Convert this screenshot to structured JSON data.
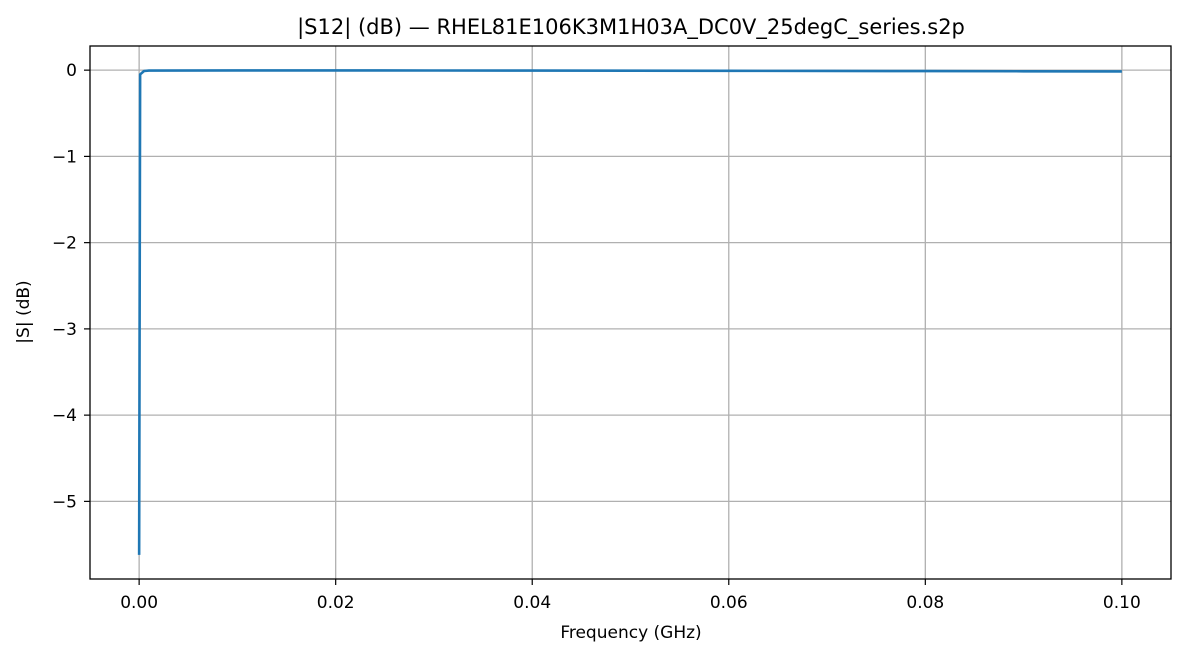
{
  "chart_data": {
    "type": "line",
    "title": "|S12| (dB) — RHEL81E106K3M1H03A_DC0V_25degC_series.s2p",
    "xlabel": "Frequency (GHz)",
    "ylabel": "|S| (dB)",
    "xlim": [
      -0.005,
      0.105
    ],
    "ylim": [
      -5.9,
      0.28
    ],
    "grid": true,
    "x_ticks": [
      0.0,
      0.02,
      0.04,
      0.06,
      0.08,
      0.1
    ],
    "x_tick_labels": [
      "0.00",
      "0.02",
      "0.04",
      "0.06",
      "0.08",
      "0.10"
    ],
    "y_ticks": [
      0,
      -1,
      -2,
      -3,
      -4,
      -5
    ],
    "y_tick_labels": [
      "0",
      "−1",
      "−2",
      "−3",
      "−4",
      "−5"
    ],
    "series": [
      {
        "name": "S12",
        "color": "#1f77b4",
        "x": [
          0.0,
          0.0001,
          0.0005,
          0.001,
          0.01,
          0.02,
          0.03,
          0.04,
          0.05,
          0.06,
          0.07,
          0.08,
          0.09,
          0.1
        ],
        "y": [
          -5.62,
          -0.05,
          -0.01,
          -0.005,
          -0.003,
          -0.003,
          -0.004,
          -0.005,
          -0.006,
          -0.008,
          -0.009,
          -0.011,
          -0.013,
          -0.015
        ]
      }
    ]
  }
}
